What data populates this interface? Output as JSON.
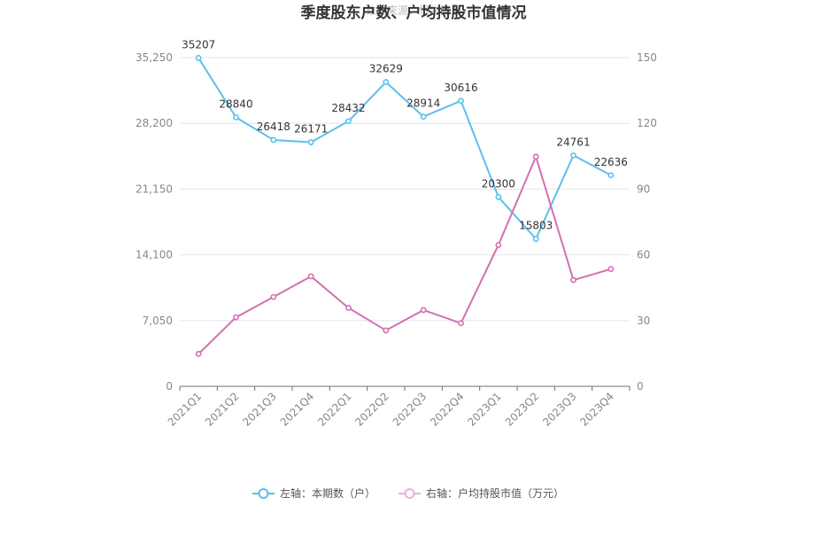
{
  "chart_data": {
    "type": "line",
    "title": "季度股东户数、户均持股市值情况",
    "watermark": "数据来源：恒生聚源",
    "categories": [
      "2021Q1",
      "2021Q2",
      "2021Q3",
      "2021Q4",
      "2022Q1",
      "2022Q2",
      "2022Q3",
      "2022Q4",
      "2023Q1",
      "2023Q2",
      "2023Q3",
      "2023Q4"
    ],
    "left_axis": {
      "ylim": [
        0,
        35250
      ],
      "ticks": [
        "0",
        "7,050",
        "14,100",
        "21,150",
        "28,200",
        "35,250"
      ],
      "tick_values": [
        0,
        7050,
        14100,
        21150,
        28200,
        35250
      ]
    },
    "right_axis": {
      "ylim": [
        0,
        150
      ],
      "ticks": [
        "0",
        "30",
        "60",
        "90",
        "120",
        "150"
      ],
      "tick_values": [
        0,
        30,
        60,
        90,
        120,
        150
      ]
    },
    "series": [
      {
        "name": "左轴：本期数（户）",
        "axis": "left",
        "color": "#5bc0eb",
        "values": [
          35207,
          28840,
          26418,
          26171,
          28432,
          32629,
          28914,
          30616,
          20300,
          15803,
          24761,
          22636
        ],
        "labels": [
          "35207",
          "28840",
          "26418",
          "26171",
          "28432",
          "32629",
          "28914",
          "30616",
          "20300",
          "15803",
          "24761",
          "22636"
        ]
      },
      {
        "name": "右轴：户均持股市值（万元）",
        "axis": "right",
        "color": "#d36fb0",
        "values": [
          14.8,
          31.5,
          40.8,
          50.2,
          35.8,
          25.5,
          34.8,
          28.8,
          64.5,
          104.8,
          48.5,
          53.5
        ]
      }
    ],
    "legend_position": "bottom",
    "grid": true
  }
}
